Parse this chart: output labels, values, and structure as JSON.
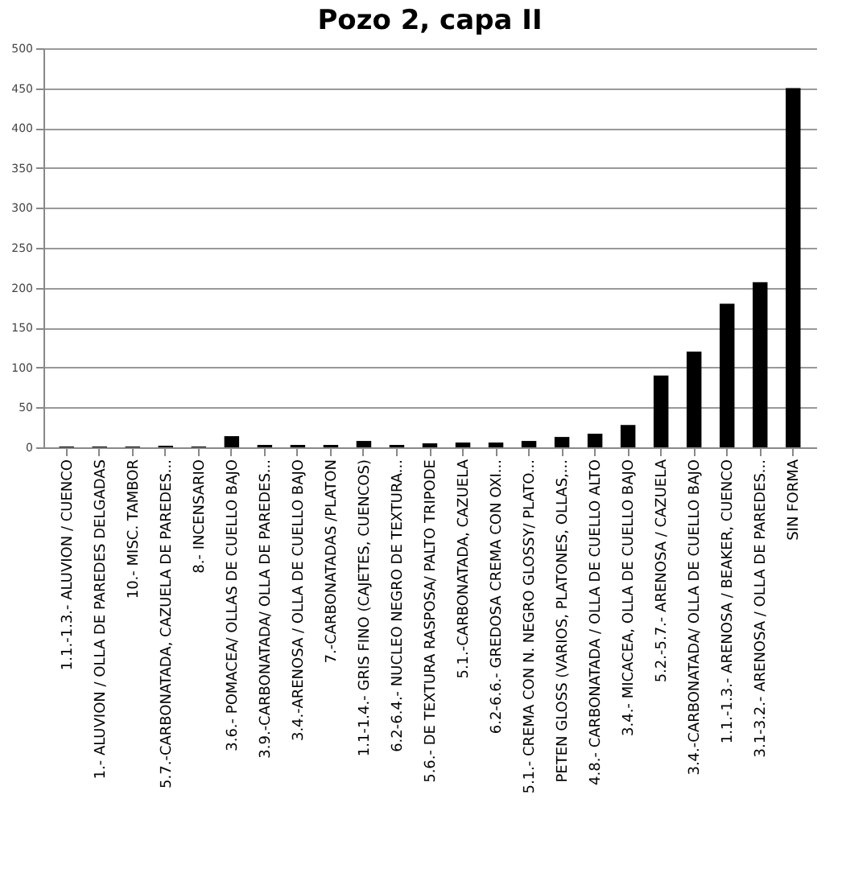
{
  "chart_data": {
    "type": "bar",
    "title": "Pozo 2, capa II",
    "categories": [
      "1.1.-1.3.- ALUVION / CUENCO",
      "1.- ALUVION / OLLA DE PAREDES DELGADAS",
      "10.- MISC. TAMBOR",
      "5.7.-CARBONATADA, CAZUELA DE PAREDES...",
      "8.- INCENSARIO",
      "3.6.- POMACEA/ OLLAS DE CUELLO BAJO",
      "3.9.-CARBONATADA/ OLLA DE PAREDES...",
      "3.4.-ARENOSA / OLLA DE CUELLO BAJO",
      "7.-CARBONATADAS /PLATON",
      "1.1-1.4.- GRIS FINO (CAJETES, CUENCOS)",
      "6.2-6.4.- NUCLEO NEGRO DE TEXTURA...",
      "5.6.- DE TEXTURA RASPOSA/ PALTO TRIPODE",
      "5.1.-CARBONATADA, CAZUELA",
      "6.2-6.6.- GREDOSA CREMA CON OXI...",
      "5.1.- CREMA CON N. NEGRO GLOSSY/ PLATO...",
      "PETEN GLOSS (VARIOS, PLATONES, OLLAS,...",
      "4.8.- CARBONATADA / OLLA DE CUELLO ALTO",
      "3.4.- MICACEA, OLLA DE CUELLO BAJO",
      "5.2.-5.7.- ARENOSA / CAZUELA",
      "3.4.-CARBONATADA/ OLLA DE CUELLO BAJO",
      "1.1.-1.3.- ARENOSA / BEAKER, CUENCO",
      "3.1-3.2.- ARENOSA / OLLA DE PAREDES...",
      "SIN FORMA"
    ],
    "values": [
      1,
      1,
      1,
      2,
      1,
      14,
      3,
      3,
      3,
      8,
      3,
      5,
      6,
      6,
      8,
      13,
      17,
      28,
      90,
      120,
      180,
      207,
      450
    ],
    "color": "#000000",
    "ylim": [
      0,
      500
    ],
    "yticks": [
      0,
      50,
      100,
      150,
      200,
      250,
      300,
      350,
      400,
      450,
      500
    ],
    "grid": "y"
  }
}
